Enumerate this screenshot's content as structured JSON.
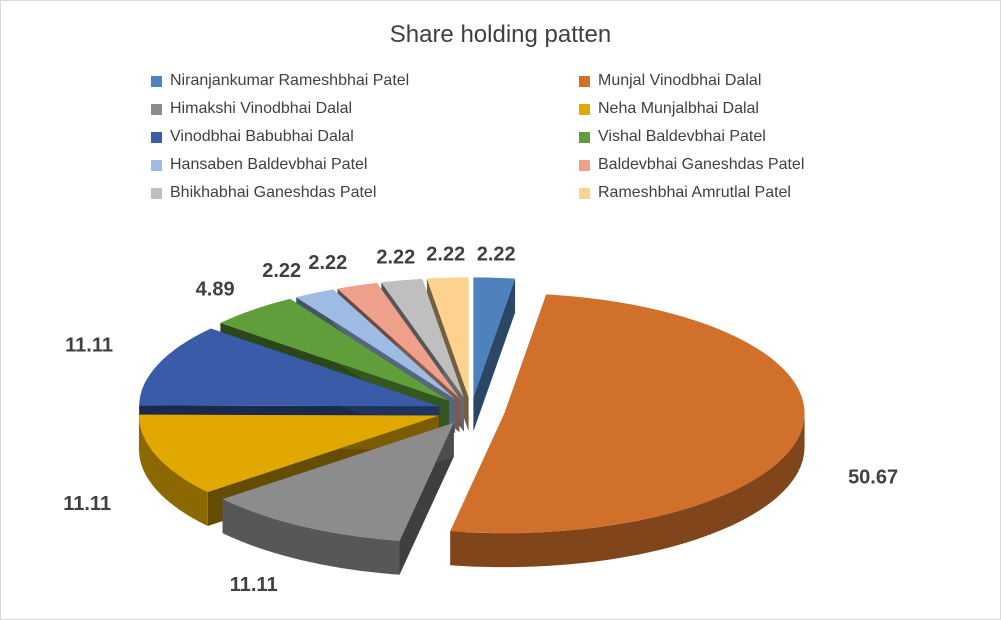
{
  "chart_data": {
    "type": "pie",
    "title": "Share holding patten",
    "legend_position": "top",
    "data_labels": true,
    "slices": [
      {
        "label": "Niranjankumar Rameshbhai Patel",
        "value": 2.22,
        "color": "#4f81bd"
      },
      {
        "label": "Munjal Vinodbhai Dalal",
        "value": 50.67,
        "color": "#d0702b"
      },
      {
        "label": "Himakshi Vinodbhai Dalal",
        "value": 11.11,
        "color": "#8c8c8c"
      },
      {
        "label": "Neha Munjalbhai Dalal",
        "value": 11.11,
        "color": "#e0a800"
      },
      {
        "label": "Vinodbhai Babubhai Dalal",
        "value": 11.11,
        "color": "#3a5ca8"
      },
      {
        "label": "Vishal Baldevbhai Patel",
        "value": 4.89,
        "color": "#5f9e3a"
      },
      {
        "label": "Hansaben Baldevbhai Patel",
        "value": 2.22,
        "color": "#9dbbe3"
      },
      {
        "label": "Baldevbhai Ganeshdas Patel",
        "value": 2.22,
        "color": "#efa08a"
      },
      {
        "label": "Bhikhabhai Ganeshdas Patel",
        "value": 2.22,
        "color": "#bfbfbf"
      },
      {
        "label": "Rameshbhai Amrutlal Patel",
        "value": 2.22,
        "color": "#fdd28e"
      }
    ],
    "value_labels": [
      "2.22",
      "50.67",
      "11.11",
      "11.11",
      "11.11",
      "4.89",
      "2.22",
      "2.22",
      "2.22",
      "2.22"
    ]
  }
}
